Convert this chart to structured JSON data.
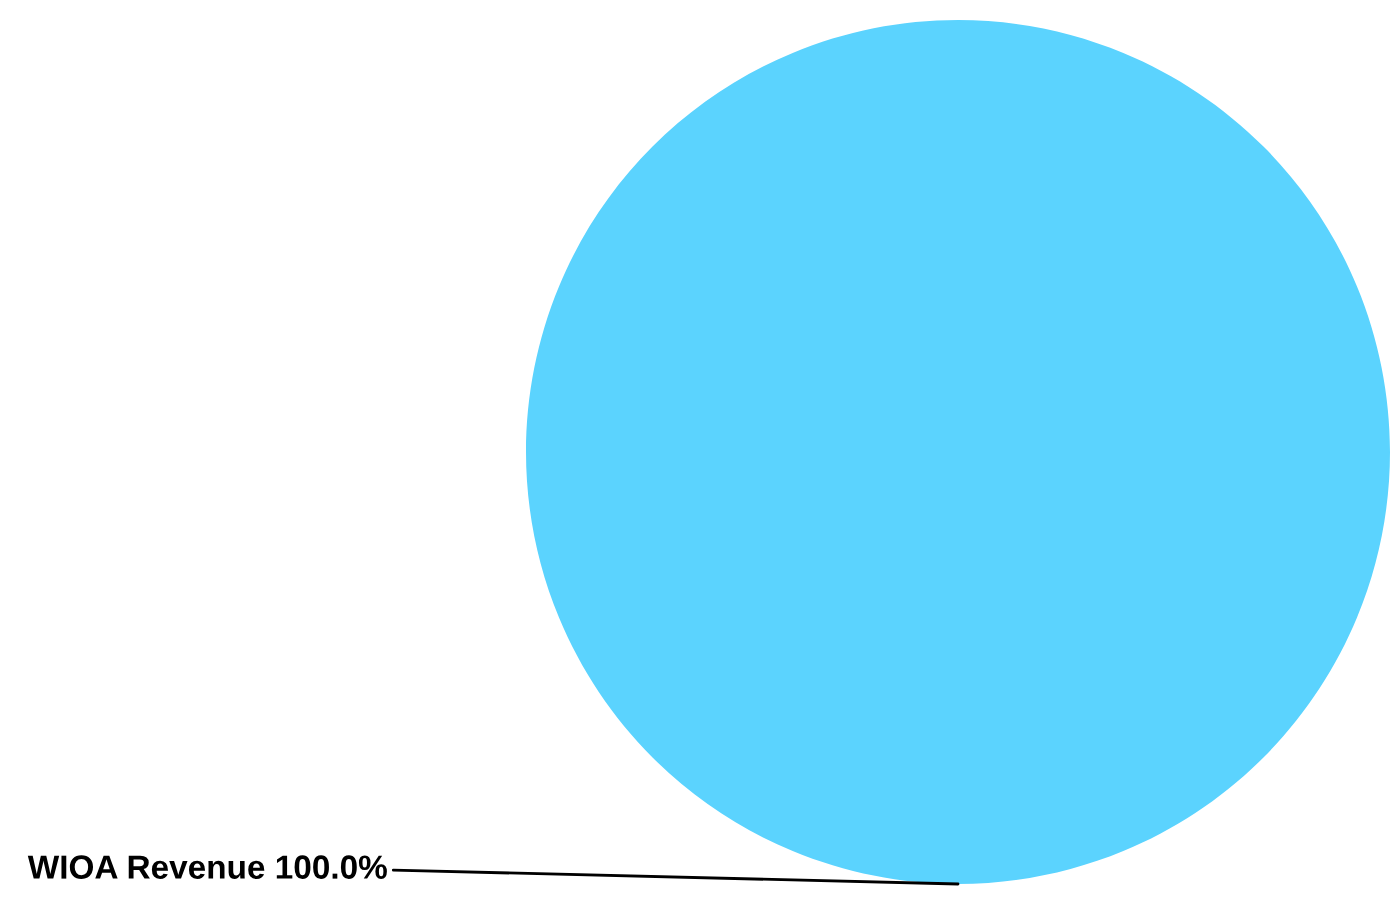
{
  "chart_data": {
    "type": "pie",
    "categories": [
      "WIOA Revenue"
    ],
    "values": [
      100
    ],
    "colors": [
      "#5bd3fe"
    ],
    "value_labels": [
      "100.0%"
    ],
    "legend": false
  }
}
